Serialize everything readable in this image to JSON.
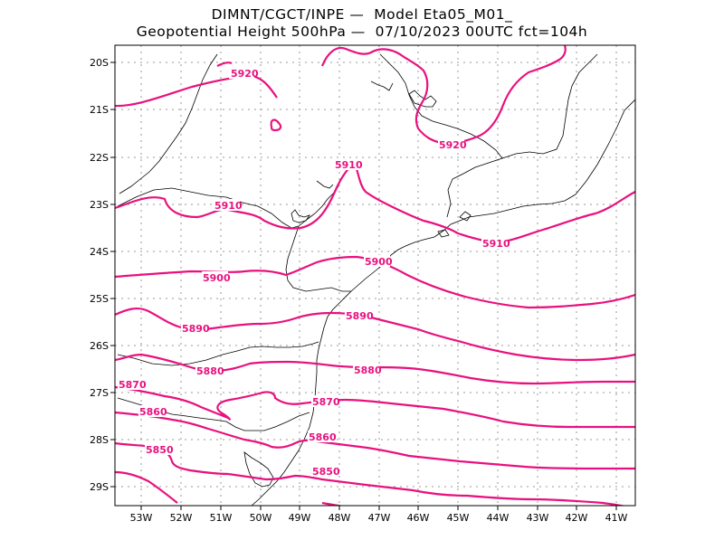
{
  "title": {
    "line1": "DIMNT/CGCT/INPE —  Model Eta05_M01_",
    "line2": "Geopotential Height 500hPa —  07/10/2023 00UTC fct=104h"
  },
  "colors": {
    "contour": "#e8117f",
    "coast": "#000000",
    "grid": "#9a9a9a"
  },
  "axes": {
    "lat_labels": [
      "20S",
      "21S",
      "22S",
      "23S",
      "24S",
      "25S",
      "26S",
      "27S",
      "28S",
      "29S"
    ],
    "lon_labels": [
      "53W",
      "52W",
      "51W",
      "50W",
      "49W",
      "48W",
      "47W",
      "46W",
      "45W",
      "44W",
      "43W",
      "42W",
      "41W"
    ]
  },
  "contour_labels": {
    "c5920a": "5920",
    "c5920b": "5920",
    "c5910a": "5910",
    "c5910b": "5910",
    "c5910c": "5910",
    "c5900a": "5900",
    "c5900b": "5900",
    "c5890a": "5890",
    "c5890b": "5890",
    "c5880a": "5880",
    "c5880b": "5880",
    "c5870a": "5870",
    "c5870b": "5870",
    "c5860a": "5860",
    "c5860b": "5860",
    "c5850a": "5850",
    "c5850b": "5850"
  }
}
